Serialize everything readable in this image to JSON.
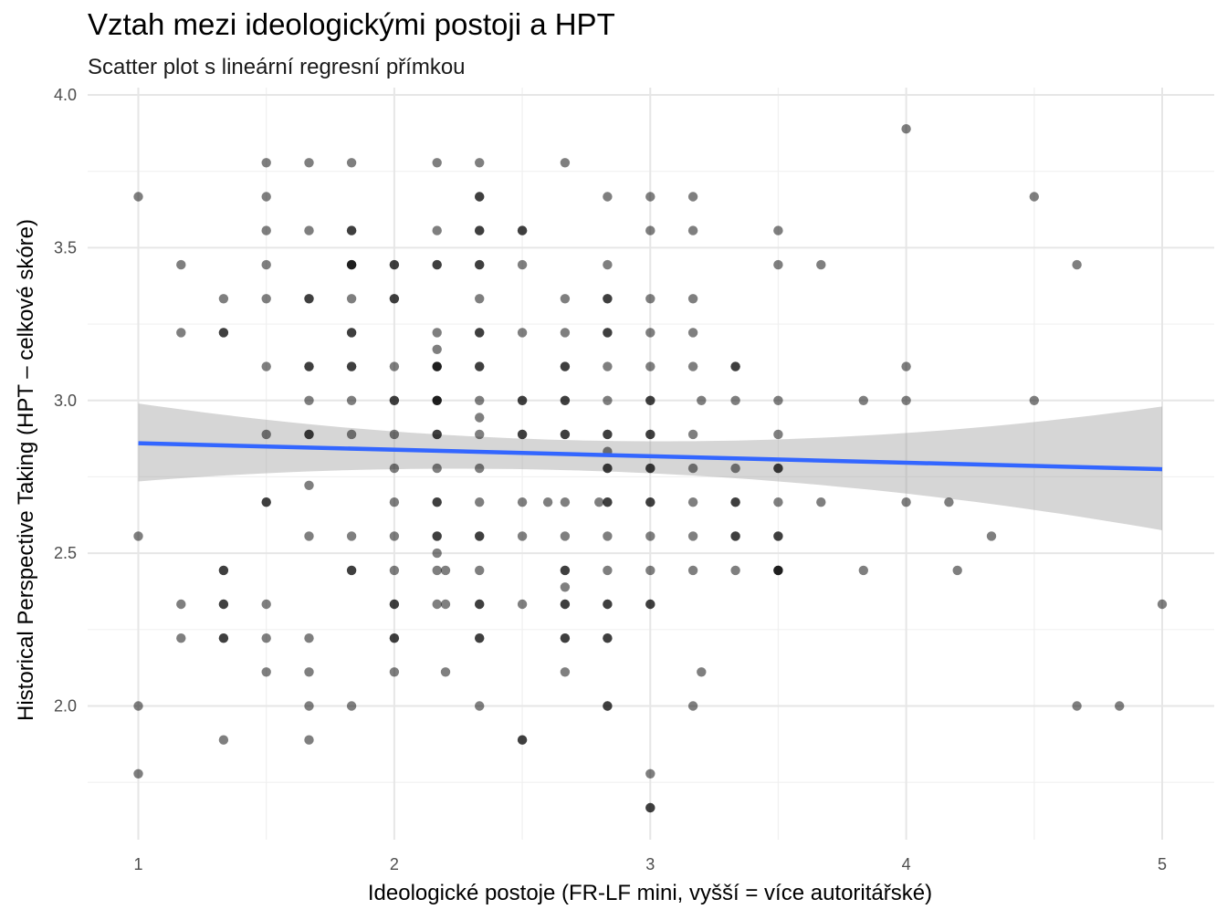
{
  "chart_data": {
    "type": "scatter",
    "title": "Vztah mezi ideologickými postoji a HPT",
    "subtitle": "Scatter plot s lineární regresní přímkou",
    "xlabel": "Ideologické postoje (FR-LF mini, vyšší = více autoritářské)",
    "ylabel": "Historical Perspective Taking (HPT – celkové skóre)",
    "xlim": [
      0.85,
      5.2
    ],
    "ylim": [
      1.62,
      4.0
    ],
    "x_ticks": [
      "1",
      "2",
      "3",
      "4",
      "5"
    ],
    "y_ticks": [
      "2.0",
      "2.5",
      "3.0",
      "3.5",
      "4.0"
    ],
    "grid": true,
    "colors": {
      "points": "#000000",
      "regression_line": "#3366ff",
      "confidence_band": "#999999"
    },
    "regression": {
      "line": [
        [
          1,
          2.86
        ],
        [
          5,
          2.775
        ]
      ],
      "ci_upper": [
        [
          1,
          2.99
        ],
        [
          2.5,
          2.875
        ],
        [
          5,
          2.98
        ]
      ],
      "ci_lower": [
        [
          1,
          2.735
        ],
        [
          2.5,
          2.775
        ],
        [
          5,
          2.575
        ]
      ]
    },
    "points": [
      [
        1,
        3.667
      ],
      [
        1,
        2.556
      ],
      [
        1,
        2.0
      ],
      [
        1,
        1.778
      ],
      [
        1.167,
        3.444
      ],
      [
        1.167,
        3.222
      ],
      [
        1.167,
        2.333
      ],
      [
        1.167,
        2.222
      ],
      [
        1.333,
        3.333
      ],
      [
        1.333,
        3.222
      ],
      [
        1.333,
        3.222
      ],
      [
        1.333,
        2.444
      ],
      [
        1.333,
        2.444
      ],
      [
        1.333,
        2.333
      ],
      [
        1.333,
        2.333
      ],
      [
        1.333,
        2.222
      ],
      [
        1.333,
        2.222
      ],
      [
        1.333,
        1.889
      ],
      [
        1.5,
        3.778
      ],
      [
        1.5,
        3.667
      ],
      [
        1.5,
        3.556
      ],
      [
        1.5,
        3.444
      ],
      [
        1.5,
        3.333
      ],
      [
        1.5,
        3.111
      ],
      [
        1.5,
        2.889
      ],
      [
        1.5,
        2.667
      ],
      [
        1.5,
        2.667
      ],
      [
        1.5,
        2.333
      ],
      [
        1.5,
        2.222
      ],
      [
        1.5,
        2.111
      ],
      [
        1.667,
        3.778
      ],
      [
        1.667,
        3.556
      ],
      [
        1.667,
        3.333
      ],
      [
        1.667,
        3.333
      ],
      [
        1.667,
        3.111
      ],
      [
        1.667,
        3.111
      ],
      [
        1.667,
        3.0
      ],
      [
        1.667,
        2.889
      ],
      [
        1.667,
        2.889
      ],
      [
        1.667,
        2.722
      ],
      [
        1.667,
        2.556
      ],
      [
        1.667,
        2.222
      ],
      [
        1.667,
        2.111
      ],
      [
        1.667,
        2.0
      ],
      [
        1.667,
        1.889
      ],
      [
        1.833,
        3.778
      ],
      [
        1.833,
        3.556
      ],
      [
        1.833,
        3.556
      ],
      [
        1.833,
        3.444
      ],
      [
        1.833,
        3.444
      ],
      [
        1.833,
        3.444
      ],
      [
        1.833,
        3.333
      ],
      [
        1.833,
        3.222
      ],
      [
        1.833,
        3.222
      ],
      [
        1.833,
        3.111
      ],
      [
        1.833,
        3.111
      ],
      [
        1.833,
        3.0
      ],
      [
        1.833,
        2.889
      ],
      [
        1.833,
        2.556
      ],
      [
        1.833,
        2.444
      ],
      [
        1.833,
        2.444
      ],
      [
        1.833,
        2.0
      ],
      [
        2,
        3.444
      ],
      [
        2,
        3.444
      ],
      [
        2,
        3.333
      ],
      [
        2,
        3.333
      ],
      [
        2,
        3.111
      ],
      [
        2,
        3.0
      ],
      [
        2,
        3.0
      ],
      [
        2,
        2.889
      ],
      [
        2,
        2.778
      ],
      [
        2,
        2.667
      ],
      [
        2,
        2.556
      ],
      [
        2,
        2.444
      ],
      [
        2,
        2.333
      ],
      [
        2,
        2.333
      ],
      [
        2,
        2.222
      ],
      [
        2,
        2.222
      ],
      [
        2,
        2.111
      ],
      [
        2.167,
        3.778
      ],
      [
        2.167,
        3.556
      ],
      [
        2.167,
        3.444
      ],
      [
        2.167,
        3.444
      ],
      [
        2.167,
        3.222
      ],
      [
        2.167,
        3.167
      ],
      [
        2.167,
        3.111
      ],
      [
        2.167,
        3.111
      ],
      [
        2.167,
        3.111
      ],
      [
        2.167,
        3.0
      ],
      [
        2.167,
        3.0
      ],
      [
        2.167,
        3.0
      ],
      [
        2.167,
        2.889
      ],
      [
        2.167,
        2.889
      ],
      [
        2.167,
        2.778
      ],
      [
        2.167,
        2.667
      ],
      [
        2.167,
        2.667
      ],
      [
        2.167,
        2.556
      ],
      [
        2.167,
        2.556
      ],
      [
        2.167,
        2.5
      ],
      [
        2.167,
        2.444
      ],
      [
        2.167,
        2.333
      ],
      [
        2.2,
        2.444
      ],
      [
        2.2,
        2.333
      ],
      [
        2.2,
        2.111
      ],
      [
        2.333,
        3.778
      ],
      [
        2.333,
        3.667
      ],
      [
        2.333,
        3.667
      ],
      [
        2.333,
        3.556
      ],
      [
        2.333,
        3.556
      ],
      [
        2.333,
        3.444
      ],
      [
        2.333,
        3.444
      ],
      [
        2.333,
        3.333
      ],
      [
        2.333,
        3.222
      ],
      [
        2.333,
        3.222
      ],
      [
        2.333,
        3.111
      ],
      [
        2.333,
        3.111
      ],
      [
        2.333,
        3.0
      ],
      [
        2.333,
        2.944
      ],
      [
        2.333,
        2.889
      ],
      [
        2.333,
        2.778
      ],
      [
        2.333,
        2.667
      ],
      [
        2.333,
        2.556
      ],
      [
        2.333,
        2.556
      ],
      [
        2.333,
        2.444
      ],
      [
        2.333,
        2.333
      ],
      [
        2.333,
        2.333
      ],
      [
        2.333,
        2.222
      ],
      [
        2.333,
        2.222
      ],
      [
        2.333,
        2.0
      ],
      [
        2.5,
        3.556
      ],
      [
        2.5,
        3.556
      ],
      [
        2.5,
        3.444
      ],
      [
        2.5,
        3.222
      ],
      [
        2.5,
        3.0
      ],
      [
        2.5,
        3.0
      ],
      [
        2.5,
        2.889
      ],
      [
        2.5,
        2.889
      ],
      [
        2.5,
        2.667
      ],
      [
        2.5,
        2.556
      ],
      [
        2.5,
        2.333
      ],
      [
        2.5,
        1.889
      ],
      [
        2.5,
        1.889
      ],
      [
        2.6,
        2.667
      ],
      [
        2.667,
        3.778
      ],
      [
        2.667,
        3.333
      ],
      [
        2.667,
        3.222
      ],
      [
        2.667,
        3.111
      ],
      [
        2.667,
        3.111
      ],
      [
        2.667,
        3.0
      ],
      [
        2.667,
        3.0
      ],
      [
        2.667,
        2.889
      ],
      [
        2.667,
        2.889
      ],
      [
        2.667,
        2.667
      ],
      [
        2.667,
        2.556
      ],
      [
        2.667,
        2.444
      ],
      [
        2.667,
        2.444
      ],
      [
        2.667,
        2.389
      ],
      [
        2.667,
        2.333
      ],
      [
        2.667,
        2.333
      ],
      [
        2.667,
        2.222
      ],
      [
        2.667,
        2.222
      ],
      [
        2.667,
        2.111
      ],
      [
        2.8,
        2.667
      ],
      [
        2.833,
        3.667
      ],
      [
        2.833,
        3.444
      ],
      [
        2.833,
        3.333
      ],
      [
        2.833,
        3.333
      ],
      [
        2.833,
        3.222
      ],
      [
        2.833,
        3.222
      ],
      [
        2.833,
        3.111
      ],
      [
        2.833,
        3.0
      ],
      [
        2.833,
        2.889
      ],
      [
        2.833,
        2.889
      ],
      [
        2.833,
        2.833
      ],
      [
        2.833,
        2.778
      ],
      [
        2.833,
        2.778
      ],
      [
        2.833,
        2.667
      ],
      [
        2.833,
        2.667
      ],
      [
        2.833,
        2.556
      ],
      [
        2.833,
        2.444
      ],
      [
        2.833,
        2.333
      ],
      [
        2.833,
        2.333
      ],
      [
        2.833,
        2.222
      ],
      [
        2.833,
        2.222
      ],
      [
        2.833,
        2.0
      ],
      [
        2.833,
        2.0
      ],
      [
        3,
        3.667
      ],
      [
        3,
        3.556
      ],
      [
        3,
        3.333
      ],
      [
        3,
        3.222
      ],
      [
        3,
        3.111
      ],
      [
        3,
        3.0
      ],
      [
        3,
        3.0
      ],
      [
        3,
        2.889
      ],
      [
        3,
        2.889
      ],
      [
        3,
        2.778
      ],
      [
        3,
        2.778
      ],
      [
        3,
        2.667
      ],
      [
        3,
        2.667
      ],
      [
        3,
        2.556
      ],
      [
        3,
        2.444
      ],
      [
        3,
        2.333
      ],
      [
        3,
        2.333
      ],
      [
        3,
        1.778
      ],
      [
        3,
        1.667
      ],
      [
        3,
        1.667
      ],
      [
        3.167,
        3.667
      ],
      [
        3.167,
        3.556
      ],
      [
        3.167,
        3.333
      ],
      [
        3.167,
        3.222
      ],
      [
        3.167,
        3.111
      ],
      [
        3.167,
        2.889
      ],
      [
        3.167,
        2.778
      ],
      [
        3.167,
        2.667
      ],
      [
        3.167,
        2.556
      ],
      [
        3.167,
        2.444
      ],
      [
        3.167,
        2.0
      ],
      [
        3.2,
        3.0
      ],
      [
        3.2,
        2.111
      ],
      [
        3.333,
        3.111
      ],
      [
        3.333,
        3.111
      ],
      [
        3.333,
        3.0
      ],
      [
        3.333,
        2.778
      ],
      [
        3.333,
        2.667
      ],
      [
        3.333,
        2.667
      ],
      [
        3.333,
        2.556
      ],
      [
        3.333,
        2.556
      ],
      [
        3.333,
        2.444
      ],
      [
        3.5,
        3.556
      ],
      [
        3.5,
        3.444
      ],
      [
        3.5,
        3.0
      ],
      [
        3.5,
        2.889
      ],
      [
        3.5,
        2.778
      ],
      [
        3.5,
        2.778
      ],
      [
        3.5,
        2.667
      ],
      [
        3.5,
        2.556
      ],
      [
        3.5,
        2.556
      ],
      [
        3.5,
        2.444
      ],
      [
        3.5,
        2.444
      ],
      [
        3.5,
        2.444
      ],
      [
        3.667,
        3.444
      ],
      [
        3.667,
        2.667
      ],
      [
        3.833,
        3.0
      ],
      [
        3.833,
        2.444
      ],
      [
        4,
        3.889
      ],
      [
        4,
        3.111
      ],
      [
        4,
        3.0
      ],
      [
        4,
        2.667
      ],
      [
        4.167,
        2.667
      ],
      [
        4.2,
        2.444
      ],
      [
        4.333,
        2.556
      ],
      [
        4.5,
        3.667
      ],
      [
        4.5,
        3.0
      ],
      [
        4.667,
        3.444
      ],
      [
        4.667,
        2.0
      ],
      [
        4.833,
        2.0
      ],
      [
        5,
        2.333
      ]
    ]
  }
}
